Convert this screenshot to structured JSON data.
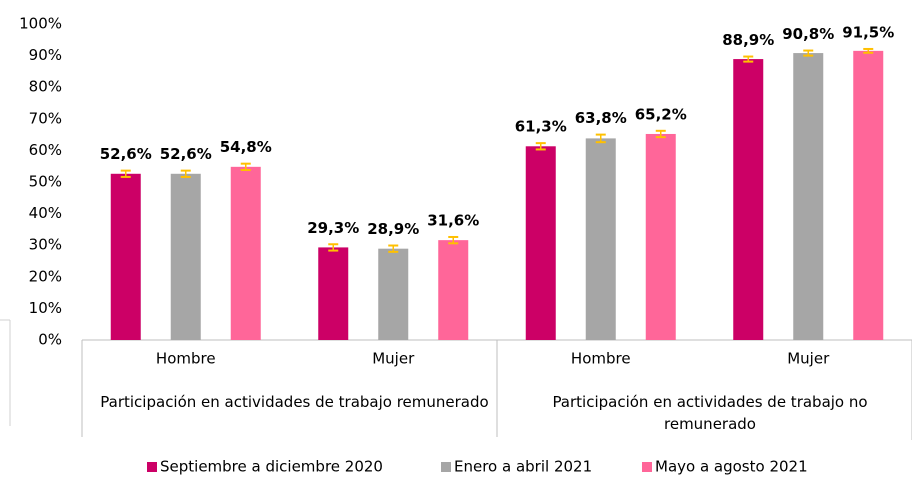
{
  "chart_data": {
    "type": "bar",
    "groups": [
      {
        "label": "Participación en actividades de trabajo remunerado",
        "categories": [
          0,
          1
        ]
      },
      {
        "label": "Participación en actividades de trabajo no remunerado",
        "categories": [
          2,
          3
        ]
      }
    ],
    "categories": [
      "Hombre",
      "Mujer",
      "Hombre",
      "Mujer"
    ],
    "series": [
      {
        "name": "Septiembre a diciembre 2020",
        "color": "#cc0066",
        "values": [
          52.6,
          29.3,
          61.3,
          88.9
        ],
        "value_labels": [
          "52,6%",
          "29,3%",
          "61,3%",
          "88,9%"
        ],
        "errors": [
          1,
          1,
          1,
          0.8
        ]
      },
      {
        "name": "Enero a abril 2021",
        "color": "#a6a6a6",
        "values": [
          52.6,
          28.9,
          63.8,
          90.8
        ],
        "value_labels": [
          "52,6%",
          "28,9%",
          "63,8%",
          "90,8%"
        ],
        "errors": [
          1,
          1,
          1.2,
          0.8
        ]
      },
      {
        "name": "Mayo a agosto 2021",
        "color": "#ff6699",
        "values": [
          54.8,
          31.6,
          65.2,
          91.5
        ],
        "value_labels": [
          "54,8%",
          "31,6%",
          "65,2%",
          "91,5%"
        ],
        "errors": [
          1,
          1,
          1,
          0.6
        ]
      }
    ],
    "error_color": "#ffc000",
    "ylim": [
      0,
      100
    ],
    "yticks": [
      {
        "value": 0,
        "label": "0%"
      },
      {
        "value": 10,
        "label": "10%"
      },
      {
        "value": 20,
        "label": "20%"
      },
      {
        "value": 30,
        "label": "30%"
      },
      {
        "value": 40,
        "label": "40%"
      },
      {
        "value": 50,
        "label": "50%"
      },
      {
        "value": 60,
        "label": "60%"
      },
      {
        "value": 70,
        "label": "70%"
      },
      {
        "value": 80,
        "label": "80%"
      },
      {
        "value": 90,
        "label": "90%"
      },
      {
        "value": 100,
        "label": "100%"
      }
    ],
    "grid": false,
    "legend": "bottom"
  }
}
